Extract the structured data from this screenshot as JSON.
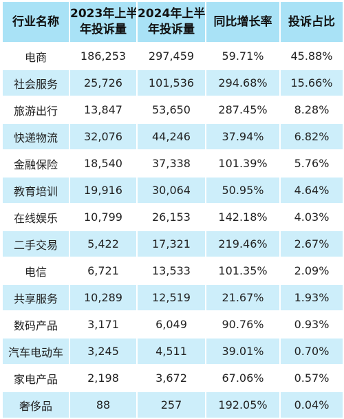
{
  "table": {
    "headers": [
      [
        "行业名称"
      ],
      [
        "2023年上半",
        "年投诉量"
      ],
      [
        "2024年上半",
        "年投诉量"
      ],
      [
        "同比增长率"
      ],
      [
        "投诉占比"
      ]
    ],
    "rows": [
      [
        "电商",
        "186,253",
        "297,459",
        "59.71%",
        "45.88%"
      ],
      [
        "社会服务",
        "25,726",
        "101,536",
        "294.68%",
        "15.66%"
      ],
      [
        "旅游出行",
        "13,847",
        "53,650",
        "287.45%",
        "8.28%"
      ],
      [
        "快递物流",
        "32,076",
        "44,246",
        "37.94%",
        "6.82%"
      ],
      [
        "金融保险",
        "18,540",
        "37,338",
        "101.39%",
        "5.76%"
      ],
      [
        "教育培训",
        "19,916",
        "30,064",
        "50.95%",
        "4.64%"
      ],
      [
        "在线娱乐",
        "10,799",
        "26,153",
        "142.18%",
        "4.03%"
      ],
      [
        "二手交易",
        "5,422",
        "17,321",
        "219.46%",
        "2.67%"
      ],
      [
        "电信",
        "6,721",
        "13,533",
        "101.35%",
        "2.09%"
      ],
      [
        "共享服务",
        "10,289",
        "12,519",
        "21.67%",
        "1.93%"
      ],
      [
        "数码产品",
        "3,171",
        "6,049",
        "90.76%",
        "0.93%"
      ],
      [
        "汽车电动车",
        "3,245",
        "4,511",
        "39.01%",
        "0.70%"
      ],
      [
        "家电产品",
        "2,198",
        "3,672",
        "67.06%",
        "0.57%"
      ],
      [
        "奢侈品",
        "88",
        "257",
        "192.05%",
        "0.04%"
      ]
    ]
  },
  "colors": {
    "header_bg": "#a9e2f6",
    "stripe_bg": "#cdeefa",
    "plain_bg": "#ffffff"
  }
}
